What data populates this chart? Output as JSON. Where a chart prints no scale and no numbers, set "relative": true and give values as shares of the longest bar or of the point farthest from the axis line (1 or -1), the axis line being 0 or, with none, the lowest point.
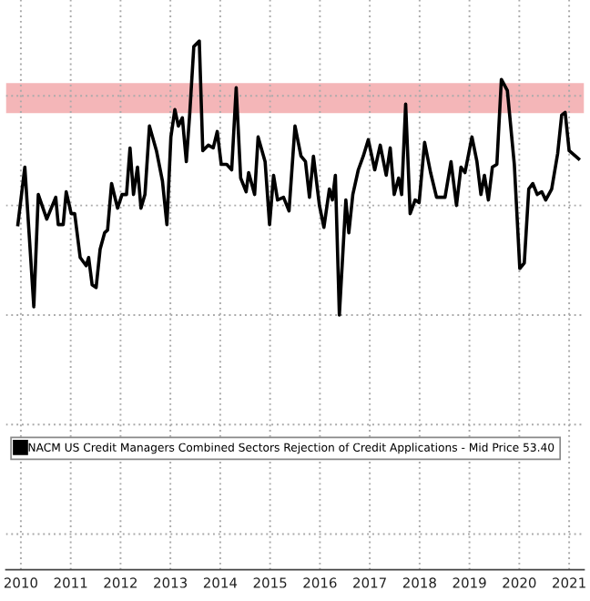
{
  "chart_data": {
    "type": "line",
    "relative": true,
    "x": [
      2010.44,
      2010.58,
      2010.76,
      2010.85,
      2011.02,
      2011.2,
      2011.25,
      2011.35,
      2011.41,
      2011.51,
      2011.58,
      2011.69,
      2011.81,
      2011.86,
      2011.93,
      2012.01,
      2012.09,
      2012.18,
      2012.24,
      2012.32,
      2012.44,
      2012.53,
      2012.62,
      2012.69,
      2012.76,
      2012.84,
      2012.91,
      2012.99,
      2013.08,
      2013.22,
      2013.34,
      2013.43,
      2013.51,
      2013.59,
      2013.66,
      2013.74,
      2013.82,
      2013.89,
      2013.97,
      2014.08,
      2014.15,
      2014.26,
      2014.36,
      2014.44,
      2014.52,
      2014.63,
      2014.73,
      2014.82,
      2014.91,
      2015.02,
      2015.07,
      2015.19,
      2015.26,
      2015.4,
      2015.49,
      2015.57,
      2015.65,
      2015.77,
      2015.88,
      2016.0,
      2016.12,
      2016.21,
      2016.29,
      2016.37,
      2016.49,
      2016.58,
      2016.69,
      2016.75,
      2016.81,
      2016.89,
      2017.02,
      2017.08,
      2017.16,
      2017.27,
      2017.37,
      2017.47,
      2017.6,
      2017.71,
      2017.83,
      2017.91,
      2017.99,
      2018.08,
      2018.14,
      2018.22,
      2018.31,
      2018.41,
      2018.49,
      2018.6,
      2018.72,
      2018.84,
      2019.01,
      2019.13,
      2019.24,
      2019.33,
      2019.41,
      2019.55,
      2019.65,
      2019.73,
      2019.8,
      2019.88,
      2019.96,
      2020.05,
      2020.14,
      2020.26,
      2020.4,
      2020.51,
      2020.6,
      2020.69,
      2020.77,
      2020.86,
      2020.95,
      2021.03,
      2021.15,
      2021.27,
      2021.35,
      2021.42,
      2021.5,
      2021.69
    ],
    "series": [
      {
        "name": "NACM US Credit Managers Combined Sectors Rejection of Credit Applications - Mid Price 53.40",
        "color": "#000000",
        "values": [
          0.33,
          0.54,
          0.03,
          0.44,
          0.35,
          0.43,
          0.33,
          0.33,
          0.45,
          0.37,
          0.37,
          0.21,
          0.18,
          0.21,
          0.11,
          0.1,
          0.24,
          0.3,
          0.31,
          0.48,
          0.39,
          0.44,
          0.44,
          0.61,
          0.44,
          0.54,
          0.39,
          0.44,
          0.69,
          0.6,
          0.49,
          0.33,
          0.65,
          0.75,
          0.69,
          0.72,
          0.56,
          0.74,
          0.98,
          1,
          0.6,
          0.62,
          0.61,
          0.67,
          0.55,
          0.55,
          0.53,
          0.83,
          0.5,
          0.45,
          0.52,
          0.44,
          0.65,
          0.56,
          0.33,
          0.51,
          0.42,
          0.43,
          0.38,
          0.69,
          0.58,
          0.56,
          0.43,
          0.58,
          0.4,
          0.32,
          0.46,
          0.42,
          0.51,
          0,
          0.42,
          0.3,
          0.44,
          0.53,
          0.58,
          0.64,
          0.53,
          0.62,
          0.51,
          0.61,
          0.44,
          0.5,
          0.44,
          0.77,
          0.37,
          0.42,
          0.41,
          0.63,
          0.52,
          0.43,
          0.43,
          0.56,
          0.4,
          0.54,
          0.52,
          0.65,
          0.56,
          0.44,
          0.51,
          0.42,
          0.54,
          0.55,
          0.86,
          0.82,
          0.55,
          0.17,
          0.19,
          0.46,
          0.48,
          0.44,
          0.45,
          0.42,
          0.46,
          0.59,
          0.73,
          0.74,
          0.6,
          0.57
        ]
      }
    ],
    "bands": [
      {
        "axis": "y",
        "from": 0.737,
        "to": 0.847,
        "color": "#f4b6b8"
      }
    ],
    "xlim": [
      2010.2,
      2021.8
    ],
    "xticks": [
      {
        "value": 2010.5,
        "label": "2010"
      },
      {
        "value": 2011.5,
        "label": "2011"
      },
      {
        "value": 2012.5,
        "label": "2012"
      },
      {
        "value": 2013.5,
        "label": "2013"
      },
      {
        "value": 2014.5,
        "label": "2014"
      },
      {
        "value": 2015.5,
        "label": "2015"
      },
      {
        "value": 2016.5,
        "label": "2016"
      },
      {
        "value": 2017.5,
        "label": "2017"
      },
      {
        "value": 2018.5,
        "label": "2018"
      },
      {
        "value": 2019.5,
        "label": "2019"
      },
      {
        "value": 2020.5,
        "label": "2020"
      },
      {
        "value": 2021.5,
        "label": "2021"
      }
    ],
    "grid": true,
    "legend": "bottom left",
    "line_style": "solid",
    "marker": "none"
  }
}
